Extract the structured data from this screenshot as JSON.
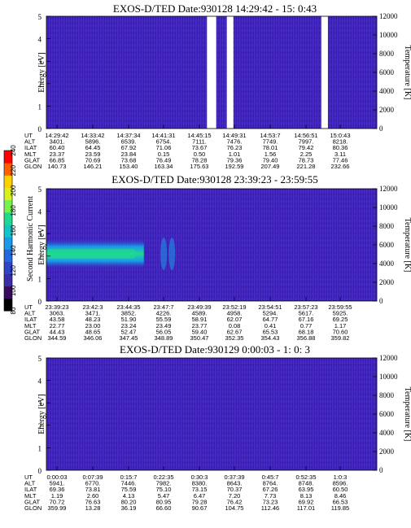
{
  "colorbar": {
    "label": "Second Harmonic Current",
    "ticks": [
      "80",
      "100",
      "120",
      "140",
      "160",
      "180",
      "200",
      "220",
      "240"
    ],
    "colors": [
      "#000000",
      "#3a0a5e",
      "#3b2ca8",
      "#2f45c8",
      "#2468e0",
      "#1a9ae8",
      "#12c6c8",
      "#20d890",
      "#78f050",
      "#d8f020",
      "#ffd000",
      "#ff6000",
      "#ff0000"
    ]
  },
  "chart_data": [
    {
      "type": "heatmap",
      "title": "EXOS-D/TED   Date:930128  14:29:42 - 15: 0:43",
      "ylabel": "Energy [eV]",
      "y2label": "Temperature [K]",
      "ylim": [
        0,
        5
      ],
      "y2lim": [
        0,
        12000
      ],
      "yticks": [
        "0",
        "1",
        "2",
        "3",
        "4",
        "5"
      ],
      "y2ticks": [
        "0",
        "2000",
        "4000",
        "6000",
        "8000",
        "10000",
        "12000"
      ],
      "data_gaps_x_fraction": [
        [
          0.486,
          0.514
        ],
        [
          0.546,
          0.566
        ],
        [
          0.832,
          0.852
        ]
      ],
      "table": {
        "labels": [
          "UT",
          "ALT",
          "ILAT",
          "MLT",
          "GLAT",
          "GLON"
        ],
        "columns": [
          [
            "14:29:42",
            "3401.",
            "60.40",
            "23.37",
            "66.85",
            "140.73"
          ],
          [
            "14:33:42",
            "5896.",
            "64.45",
            "23.59",
            "70.69",
            "146.21"
          ],
          [
            "14:37:34",
            "6539.",
            "67.92",
            "23.84",
            "73.68",
            "153.40"
          ],
          [
            "14:41:31",
            "6754.",
            "71.06",
            "0.15",
            "76.49",
            "163.34"
          ],
          [
            "14:45:15",
            "7111.",
            "73.67",
            "0.50",
            "78.28",
            "175.63"
          ],
          [
            "14:49:31",
            "7476.",
            "76.23",
            "1.01",
            "79.36",
            "192.59"
          ],
          [
            "14:53:7",
            "7749.",
            "78.01",
            "1.56",
            "79.40",
            "207.49"
          ],
          [
            "14:56:51",
            "7997.",
            "79.42",
            "2.25",
            "78.73",
            "221.28"
          ],
          [
            "15:0:43",
            "8218.",
            "80.36",
            "3.11",
            "77.46",
            "232.66"
          ]
        ]
      }
    },
    {
      "type": "heatmap",
      "title": "EXOS-D/TED   Date:930128  23:39:23 - 23:59:55",
      "ylabel": "Energy [eV]",
      "y2label": "Temperature [K]",
      "ylim": [
        0,
        5
      ],
      "y2lim": [
        0,
        12000
      ],
      "yticks": [
        "0",
        "1",
        "2",
        "3",
        "4",
        "5"
      ],
      "y2ticks": [
        "0",
        "2000",
        "4000",
        "6000",
        "8000",
        "10000",
        "12000"
      ],
      "band_energy_eV": 2.1,
      "table": {
        "labels": [
          "UT",
          "ALT",
          "ILAT",
          "MLT",
          "GLAT",
          "GLON"
        ],
        "columns": [
          [
            "23:39:23",
            "3063.",
            "43.58",
            "22.77",
            "44.43",
            "344.59"
          ],
          [
            "23:42:3",
            "3471.",
            "48.23",
            "23.00",
            "48.65",
            "346.06"
          ],
          [
            "23:44:35",
            "3852.",
            "51.90",
            "23.24",
            "52.47",
            "347.45"
          ],
          [
            "23:47:7",
            "4226.",
            "55.59",
            "23.49",
            "56.05",
            "348.89"
          ],
          [
            "23:49:39",
            "4589.",
            "58.91",
            "23.77",
            "59.40",
            "350.47"
          ],
          [
            "23:52:19",
            "4958.",
            "62.07",
            "0.08",
            "62.67",
            "352.35"
          ],
          [
            "23:54:51",
            "5294.",
            "64.77",
            "0.41",
            "65.53",
            "354.43"
          ],
          [
            "23:57:23",
            "5617.",
            "67.16",
            "0.77",
            "68.18",
            "356.88"
          ],
          [
            "23:59:55",
            "5925.",
            "69.25",
            "1.17",
            "70.60",
            "359.82"
          ]
        ]
      }
    },
    {
      "type": "heatmap",
      "title": "EXOS-D/TED   Date:930129  0:00:03 - 1: 0: 3",
      "ylabel": "Energy [eV]",
      "y2label": "Temperature [K]",
      "ylim": [
        0,
        5
      ],
      "y2lim": [
        0,
        12000
      ],
      "yticks": [
        "0",
        "1",
        "2",
        "3",
        "4",
        "5"
      ],
      "y2ticks": [
        "0",
        "2000",
        "4000",
        "6000",
        "8000",
        "10000",
        "12000"
      ],
      "table": {
        "labels": [
          "UT",
          "ALT",
          "ILAT",
          "MLT",
          "GLAT",
          "GLON"
        ],
        "columns": [
          [
            "0:00:03",
            "5941.",
            "69.36",
            "1.19",
            "70.72",
            "359.99"
          ],
          [
            "0:07:39",
            "6770.",
            "73.81",
            "2.60",
            "76.63",
            "13.28"
          ],
          [
            "0:15:7",
            "7446.",
            "75.59",
            "4.13",
            "80.20",
            "36.19"
          ],
          [
            "0:22:35",
            "7982.",
            "75.10",
            "5.47",
            "80.95",
            "66.60"
          ],
          [
            "0:30:3",
            "8380.",
            "73.15",
            "6.47",
            "79.28",
            "90.67"
          ],
          [
            "0:37:39",
            "8643.",
            "70.37",
            "7.20",
            "76.42",
            "104.75"
          ],
          [
            "0:45:7",
            "8764.",
            "67.26",
            "7.73",
            "73.23",
            "112.46"
          ],
          [
            "0:52:35",
            "8748.",
            "63.95",
            "8.13",
            "69.92",
            "117.01"
          ],
          [
            "1:0:3",
            "8596.",
            "60.50",
            "8.46",
            "66.53",
            "119.85"
          ]
        ]
      }
    }
  ]
}
